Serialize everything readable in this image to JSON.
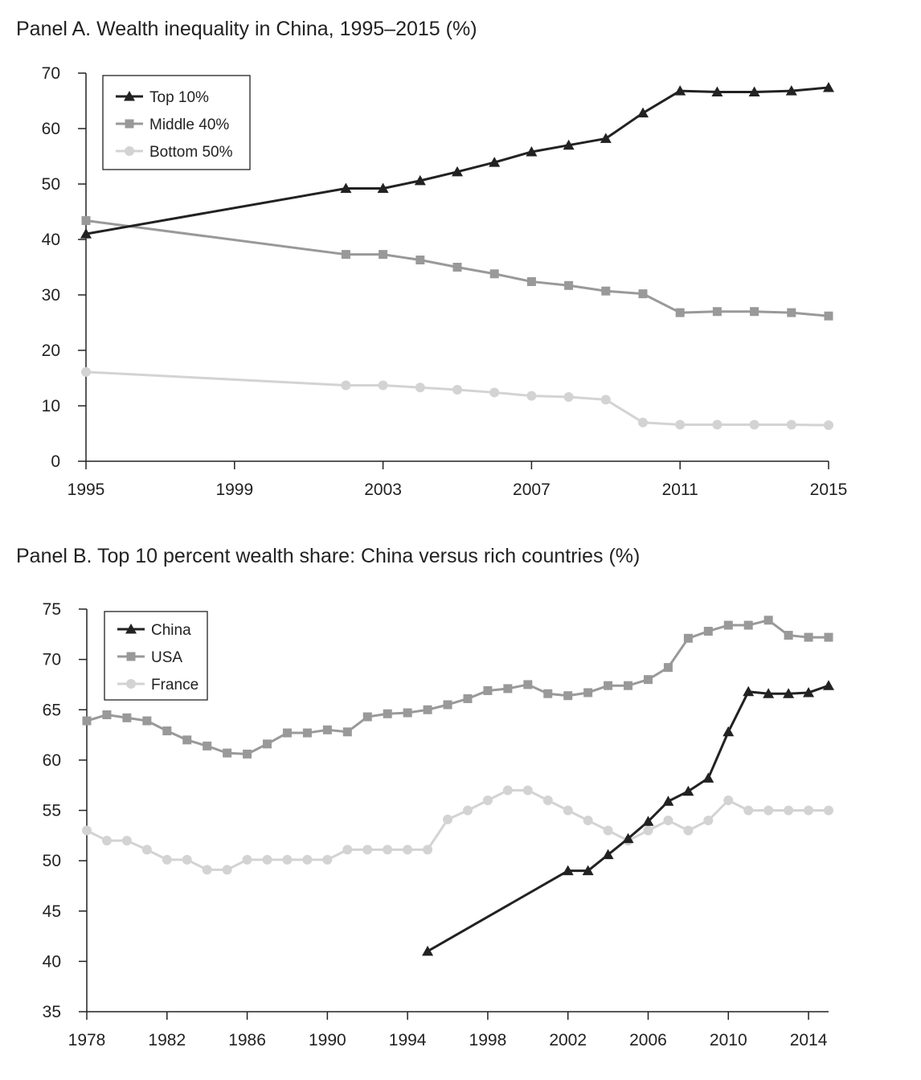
{
  "chart_data": [
    {
      "type": "line",
      "title": "Panel A. Wealth inequality in China, 1995–2015 (%)",
      "xlabel": "",
      "ylabel": "",
      "xlim": [
        1995,
        2015
      ],
      "ylim": [
        0,
        70
      ],
      "x_ticks": [
        1995,
        1999,
        2003,
        2007,
        2011,
        2015
      ],
      "y_ticks": [
        0,
        10,
        20,
        30,
        40,
        50,
        60,
        70
      ],
      "grid": false,
      "legend_position": "top-left",
      "series": [
        {
          "name": "Top 10%",
          "marker": "triangle",
          "color": "#222222",
          "x": [
            1995,
            2002,
            2003,
            2004,
            2005,
            2006,
            2007,
            2008,
            2009,
            2010,
            2011,
            2012,
            2013,
            2014,
            2015
          ],
          "values": [
            41,
            49.2,
            49.2,
            50.6,
            52.2,
            53.9,
            55.8,
            57,
            58.2,
            62.8,
            66.8,
            66.6,
            66.6,
            66.8,
            67.4
          ]
        },
        {
          "name": "Middle 40%",
          "marker": "square",
          "color": "#999999",
          "x": [
            1995,
            2002,
            2003,
            2004,
            2005,
            2006,
            2007,
            2008,
            2009,
            2010,
            2011,
            2012,
            2013,
            2014,
            2015
          ],
          "values": [
            43.4,
            37.3,
            37.3,
            36.3,
            35,
            33.8,
            32.4,
            31.7,
            30.7,
            30.2,
            26.8,
            27,
            27,
            26.8,
            26.2
          ]
        },
        {
          "name": "Bottom 50%",
          "marker": "circle",
          "color": "#d3d3d3",
          "x": [
            1995,
            2002,
            2003,
            2004,
            2005,
            2006,
            2007,
            2008,
            2009,
            2010,
            2011,
            2012,
            2013,
            2014,
            2015
          ],
          "values": [
            16.1,
            13.7,
            13.7,
            13.3,
            12.9,
            12.4,
            11.8,
            11.6,
            11.1,
            7,
            6.6,
            6.6,
            6.6,
            6.6,
            6.5
          ]
        }
      ]
    },
    {
      "type": "line",
      "title": "Panel B. Top 10 percent wealth share: China versus rich countries (%)",
      "xlabel": "",
      "ylabel": "",
      "xlim": [
        1978,
        2015
      ],
      "ylim": [
        35,
        75
      ],
      "x_ticks": [
        1978,
        1982,
        1986,
        1990,
        1994,
        1998,
        2002,
        2006,
        2010,
        2014
      ],
      "y_ticks": [
        35,
        40,
        45,
        50,
        55,
        60,
        65,
        70,
        75
      ],
      "grid": false,
      "legend_position": "top-left",
      "series": [
        {
          "name": "China",
          "marker": "triangle",
          "color": "#222222",
          "x": [
            1995,
            2002,
            2003,
            2004,
            2005,
            2006,
            2007,
            2008,
            2009,
            2010,
            2011,
            2012,
            2013,
            2014,
            2015
          ],
          "values": [
            41,
            49,
            49,
            50.6,
            52.2,
            53.9,
            55.9,
            56.9,
            58.2,
            62.8,
            66.8,
            66.6,
            66.6,
            66.7,
            67.4
          ]
        },
        {
          "name": "USA",
          "marker": "square",
          "color": "#999999",
          "x": [
            1978,
            1979,
            1980,
            1981,
            1982,
            1983,
            1984,
            1985,
            1986,
            1987,
            1988,
            1989,
            1990,
            1991,
            1992,
            1993,
            1994,
            1995,
            1996,
            1997,
            1998,
            1999,
            2000,
            2001,
            2002,
            2003,
            2004,
            2005,
            2006,
            2007,
            2008,
            2009,
            2010,
            2011,
            2012,
            2013,
            2014,
            2015
          ],
          "values": [
            63.9,
            64.5,
            64.2,
            63.9,
            62.9,
            62,
            61.4,
            60.7,
            60.6,
            61.6,
            62.7,
            62.7,
            63,
            62.8,
            64.3,
            64.6,
            64.7,
            65,
            65.5,
            66.1,
            66.9,
            67.1,
            67.5,
            66.6,
            66.4,
            66.7,
            67.4,
            67.4,
            68,
            69.2,
            72.1,
            72.8,
            73.4,
            73.4,
            73.9,
            72.4,
            72.2,
            72.2
          ]
        },
        {
          "name": "France",
          "marker": "circle",
          "color": "#d3d3d3",
          "x": [
            1978,
            1979,
            1980,
            1981,
            1982,
            1983,
            1984,
            1985,
            1986,
            1987,
            1988,
            1989,
            1990,
            1991,
            1992,
            1993,
            1994,
            1995,
            1996,
            1997,
            1998,
            1999,
            2000,
            2001,
            2002,
            2003,
            2004,
            2005,
            2006,
            2007,
            2008,
            2009,
            2010,
            2011,
            2012,
            2013,
            2014,
            2015
          ],
          "values": [
            53,
            52,
            52,
            51.1,
            50.1,
            50.1,
            49.1,
            49.1,
            50.1,
            50.1,
            50.1,
            50.1,
            50.1,
            51.1,
            51.1,
            51.1,
            51.1,
            51.1,
            54.1,
            55,
            56,
            57,
            57,
            56,
            55,
            54,
            53,
            52,
            53,
            54,
            53,
            54,
            56,
            55,
            55,
            55,
            55,
            55
          ]
        }
      ]
    }
  ]
}
